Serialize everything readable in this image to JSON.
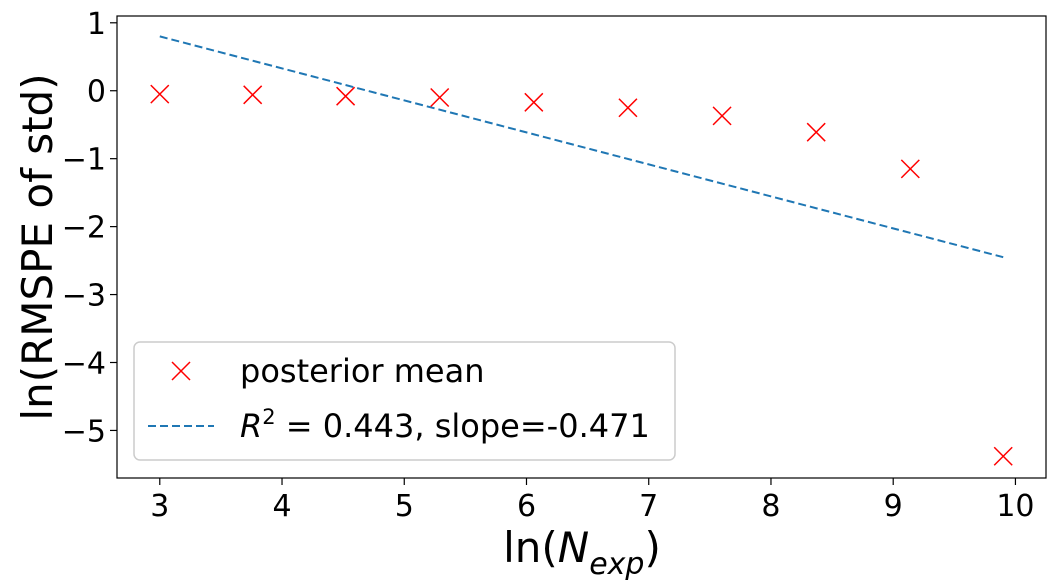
{
  "chart_data": {
    "type": "scatter",
    "xlabel": "ln(N_exp)",
    "xlabel_base": "ln(",
    "xlabel_var": "N",
    "xlabel_sub": "exp",
    "xlabel_close": ")",
    "ylabel": "ln(RMSPE of std)",
    "xlim": [
      2.65,
      10.25
    ],
    "ylim": [
      -5.7,
      1.1
    ],
    "xticks": [
      3,
      4,
      5,
      6,
      7,
      8,
      9,
      10
    ],
    "yticks": [
      1,
      0,
      -1,
      -2,
      -3,
      -4,
      -5
    ],
    "xtick_labels": [
      "3",
      "4",
      "5",
      "6",
      "7",
      "8",
      "9",
      "10"
    ],
    "ytick_labels": [
      "1",
      "0",
      "−1",
      "−2",
      "−3",
      "−4",
      "−5"
    ],
    "grid": false,
    "legend_position": "lower-left",
    "series": [
      {
        "name": "posterior mean",
        "kind": "scatter",
        "marker": "x",
        "color": "#ff0000",
        "x": [
          3.0,
          3.76,
          4.52,
          5.29,
          6.06,
          6.83,
          7.6,
          8.37,
          9.14,
          9.9
        ],
        "y": [
          -0.05,
          -0.06,
          -0.08,
          -0.1,
          -0.17,
          -0.25,
          -0.37,
          -0.61,
          -1.15,
          -5.38
        ]
      },
      {
        "name": "R² = 0.443, slope=-0.471",
        "name_var": "R",
        "name_sup": "2",
        "name_rest": " = 0.443, slope=-0.471",
        "kind": "line",
        "style": "dashed",
        "color": "#1f77b4",
        "x": [
          3.0,
          9.9
        ],
        "y": [
          0.8,
          -2.45
        ]
      }
    ]
  }
}
